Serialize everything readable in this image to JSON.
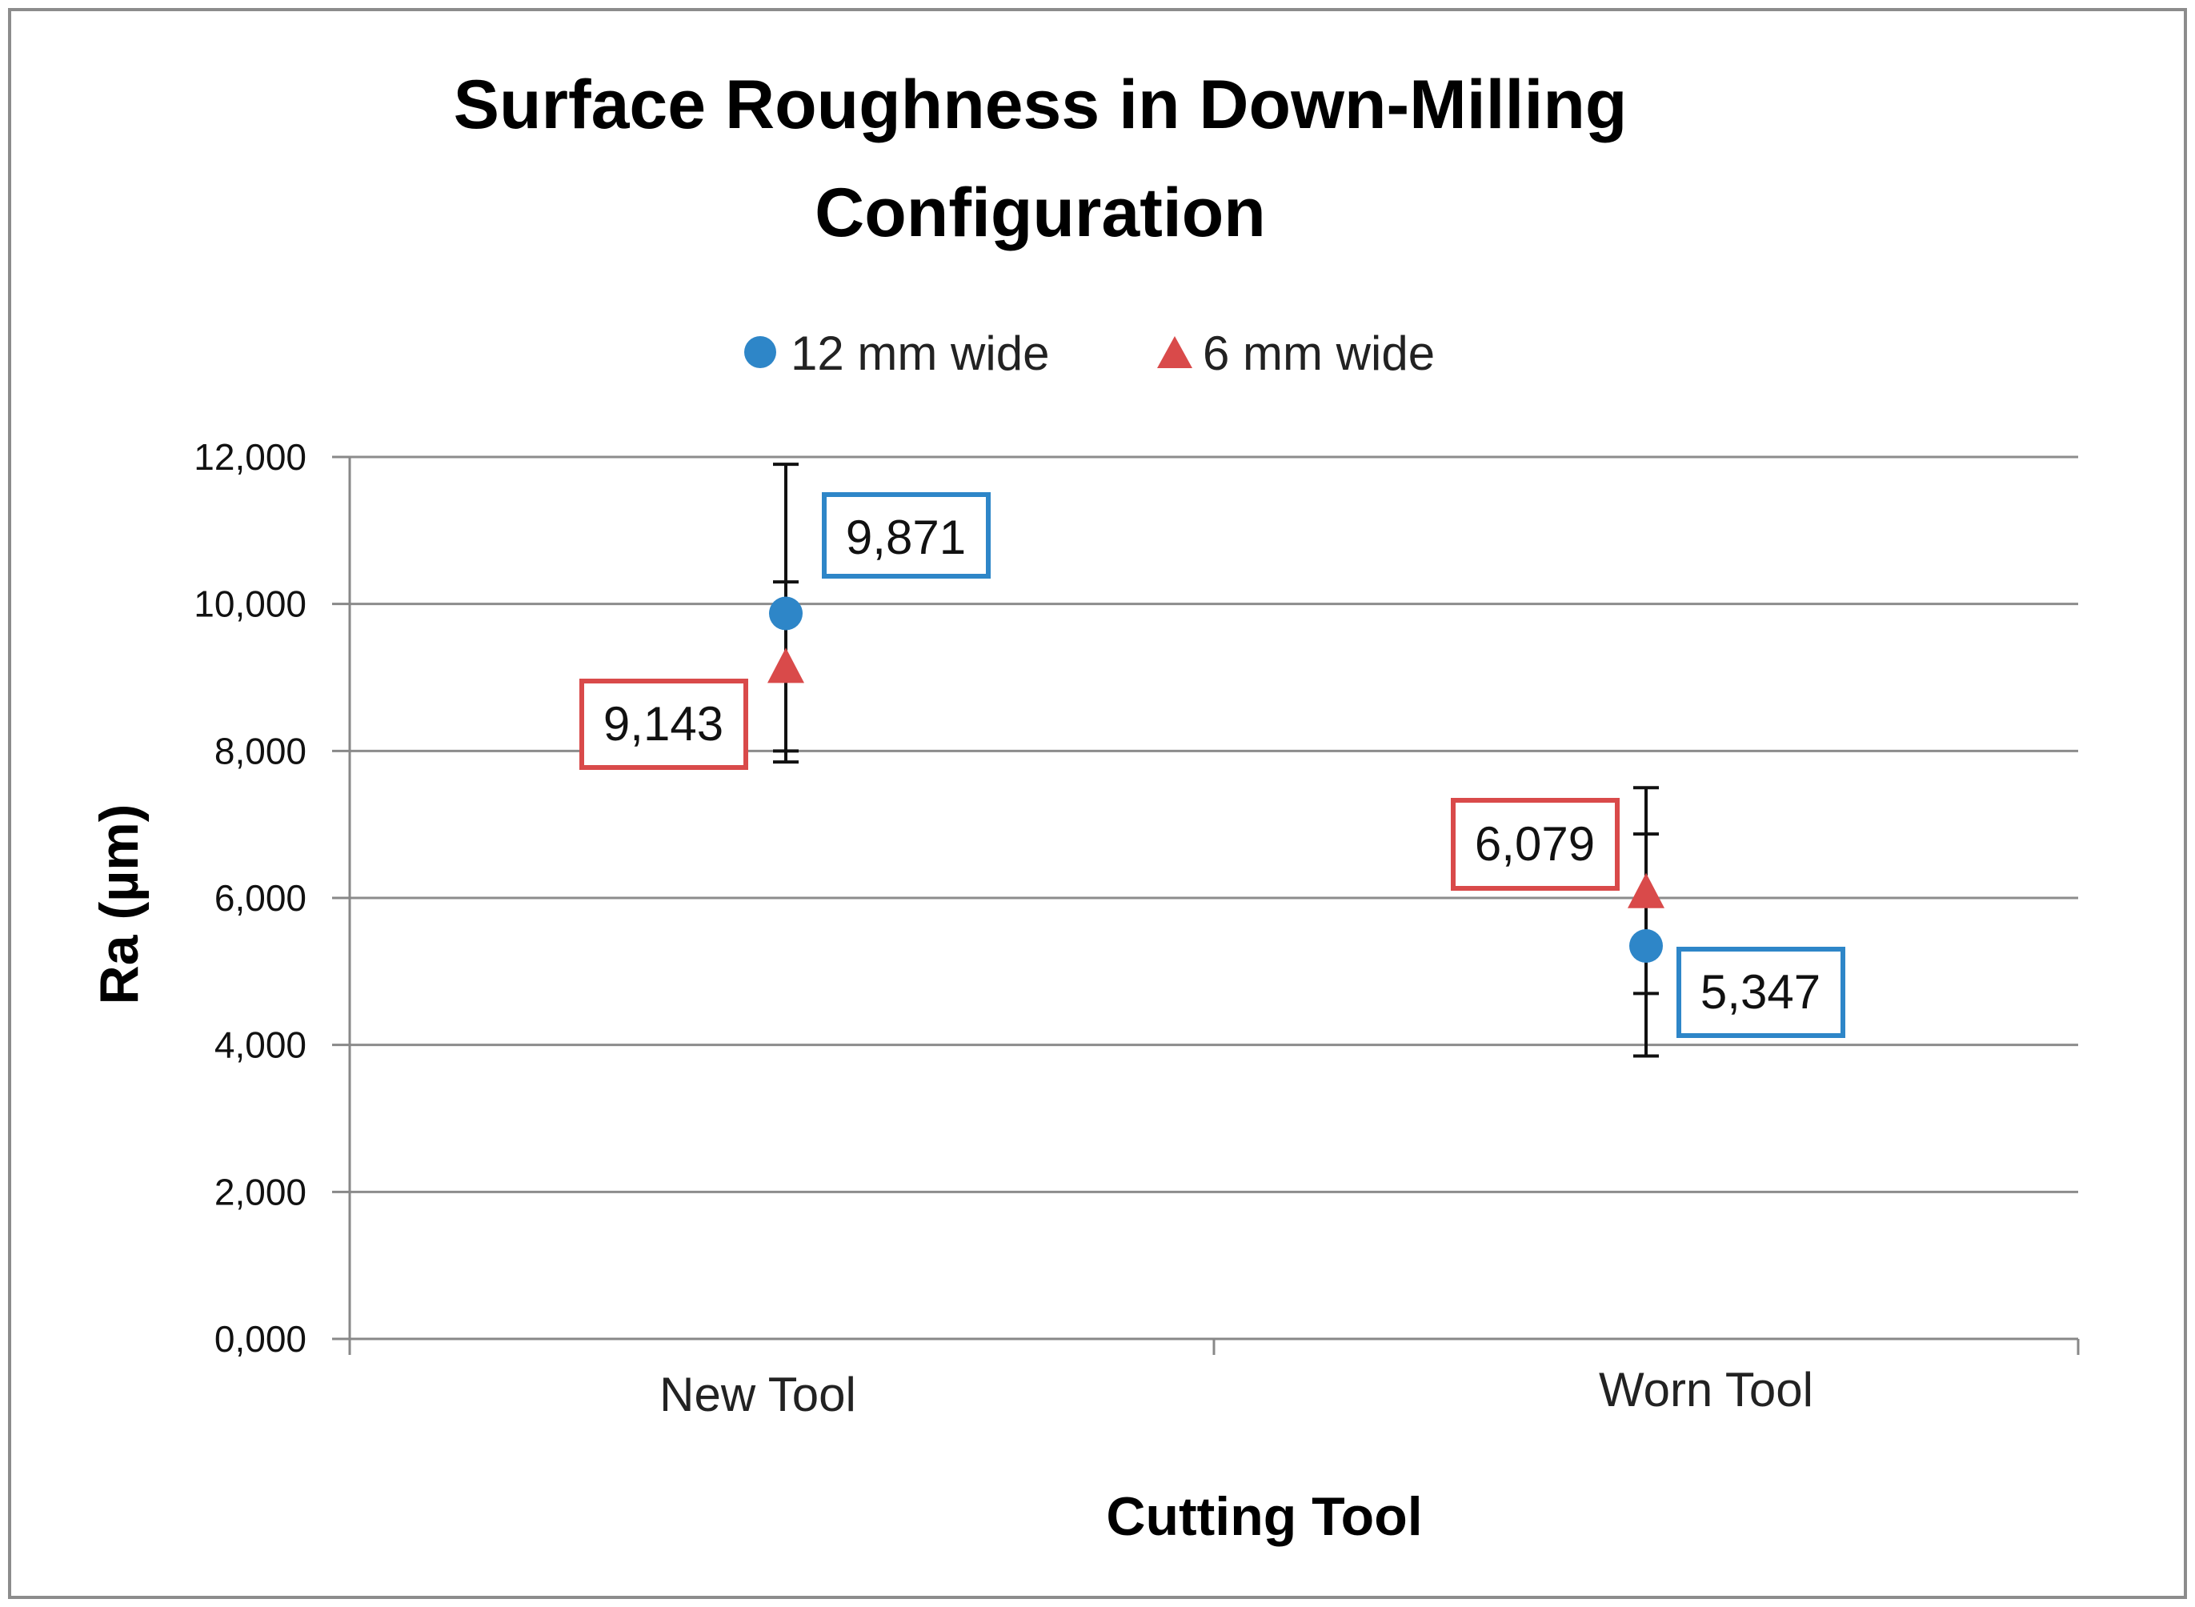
{
  "chart_data": {
    "type": "scatter",
    "title_lines": [
      "Surface Roughness in Down-Milling",
      "Configuration"
    ],
    "xlabel": "Cutting Tool",
    "ylabel": "Ra (µm)",
    "categories": [
      "New Tool",
      "Worn Tool"
    ],
    "ylim": [
      0,
      12000
    ],
    "y_ticks": [
      0,
      2000,
      4000,
      6000,
      8000,
      10000,
      12000
    ],
    "y_tick_labels": [
      "0,000",
      "2,000",
      "4,000",
      "6,000",
      "8,000",
      "10,000",
      "12,000"
    ],
    "grid": true,
    "legend_position": "top-center",
    "series": [
      {
        "name": "12 mm wide",
        "marker": "circle",
        "color": "#2E86C8",
        "values": [
          9871,
          5347
        ],
        "labels": [
          "9,871",
          "5,347"
        ],
        "error_low": [
          7850,
          3850
        ],
        "error_high": [
          10300,
          6870
        ],
        "label_position": [
          "right-above",
          "right-below"
        ]
      },
      {
        "name": "6 mm wide",
        "marker": "triangle",
        "color": "#D94A4A",
        "values": [
          9143,
          6079
        ],
        "labels": [
          "9,143",
          "6,079"
        ],
        "error_low": [
          8000,
          4700
        ],
        "error_high": [
          11900,
          7500
        ],
        "label_position": [
          "left-below",
          "left-above"
        ]
      }
    ]
  }
}
